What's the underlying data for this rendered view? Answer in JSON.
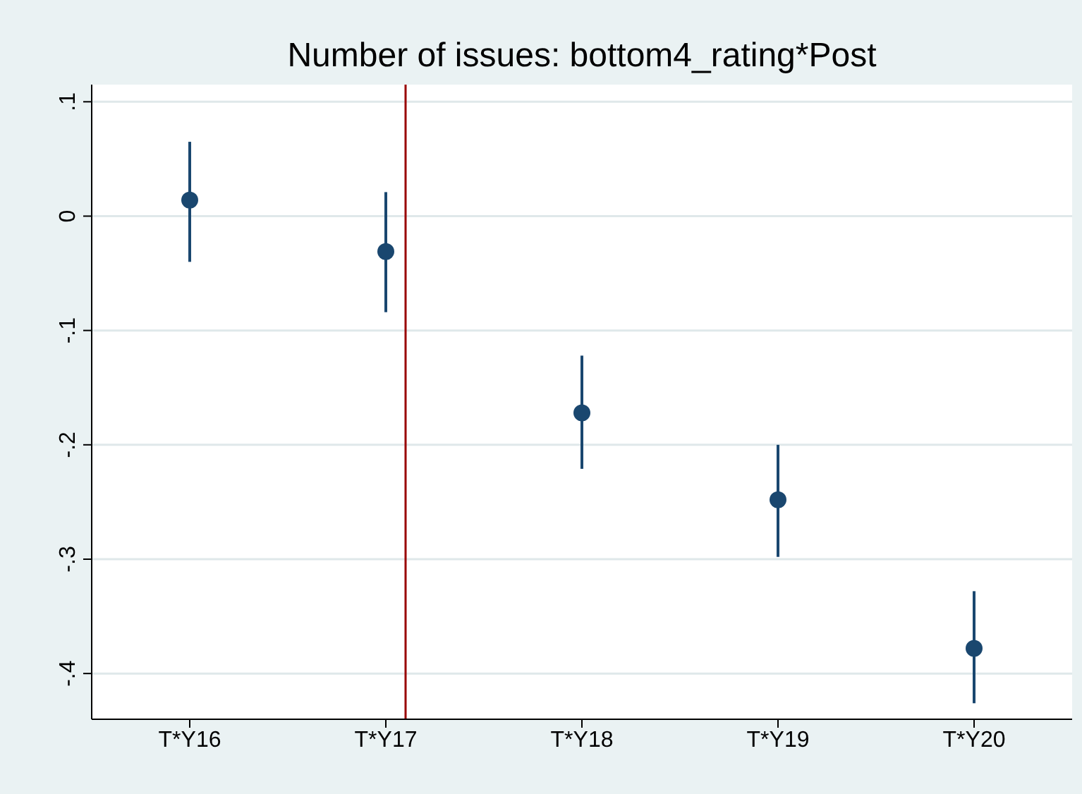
{
  "chart_data": {
    "type": "scatter",
    "title": "Number of issues: bottom4_rating*Post",
    "categories": [
      "T*Y16",
      "T*Y17",
      "T*Y18",
      "T*Y19",
      "T*Y20"
    ],
    "values": [
      0.014,
      -0.031,
      -0.172,
      -0.248,
      -0.378
    ],
    "errors": [
      [
        -0.04,
        0.065
      ],
      [
        -0.084,
        0.021
      ],
      [
        -0.221,
        -0.122
      ],
      [
        -0.298,
        -0.2
      ],
      [
        -0.426,
        -0.328
      ]
    ],
    "color": "#1a476f",
    "marker": "circle",
    "ylim": [
      -0.44,
      0.115
    ],
    "yticks": [
      {
        "value": -0.4,
        "label": "-.4"
      },
      {
        "value": -0.3,
        "label": "-.3"
      },
      {
        "value": -0.2,
        "label": "-.2"
      },
      {
        "value": -0.1,
        "label": "-.1"
      },
      {
        "value": 0,
        "label": "0"
      },
      {
        "value": 0.1,
        "label": ".1"
      }
    ],
    "grid": "y",
    "ref_lines": [
      {
        "axis": "x",
        "value": "T*Y17",
        "color": "#990000"
      }
    ]
  }
}
